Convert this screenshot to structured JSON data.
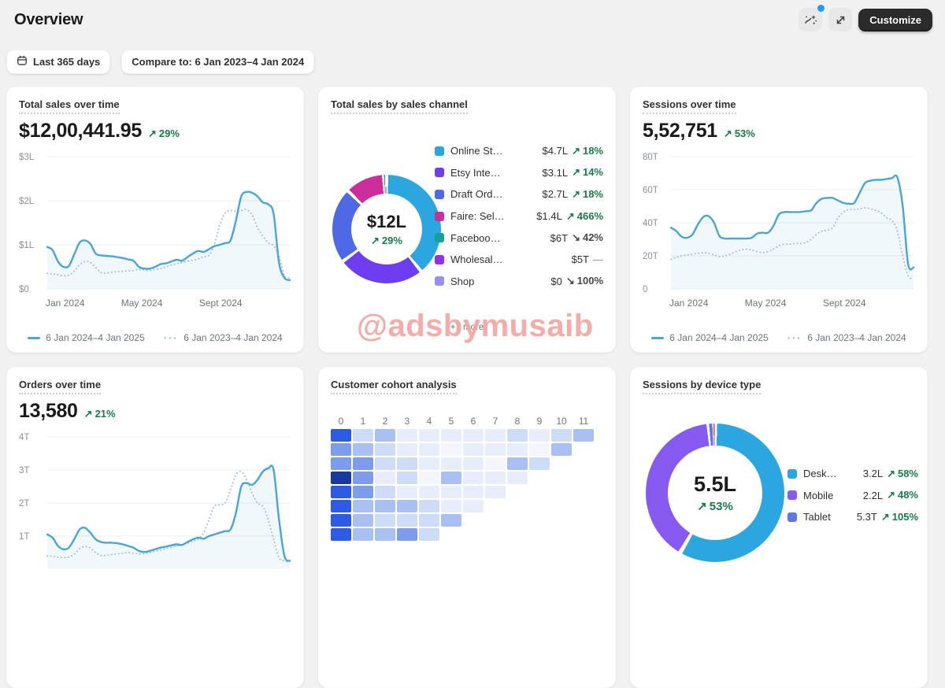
{
  "header": {
    "title": "Overview",
    "customize_label": "Customize"
  },
  "filters": {
    "date_range": "Last 365 days",
    "compare_label": "Compare to: 6 Jan 2023–4 Jan 2024"
  },
  "watermark": "@adsbymusaib",
  "period_legend": {
    "current": "6 Jan 2024–4 Jan 2025",
    "previous": "6 Jan 2023–4 Jan 2024"
  },
  "colors": {
    "line_current": "#4aa4d9",
    "line_previous": "#a3bed8",
    "success_green": "#197a4b",
    "accent_blue": "#2ba6de"
  },
  "chart_data": [
    {
      "id": "total_sales_over_time",
      "type": "line",
      "title": "Total sales over time",
      "value": "$12,00,441.95",
      "delta": {
        "dir": "up",
        "pct": "29%"
      },
      "ylim": [
        0,
        3
      ],
      "y_ticks": [
        {
          "label": "$3L",
          "v": 3
        },
        {
          "label": "$2L",
          "v": 2
        },
        {
          "label": "$1L",
          "v": 1
        },
        {
          "label": "$0",
          "v": 0
        }
      ],
      "x_ticks": [
        {
          "label": "Jan 2024",
          "f": 0
        },
        {
          "label": "May 2024",
          "f": 0.39
        },
        {
          "label": "Sept 2024",
          "f": 0.715
        }
      ],
      "series": [
        {
          "name": "6 Jan 2024–4 Jan 2025",
          "style": "solid",
          "values": [
            0.95,
            0.88,
            0.62,
            0.5,
            0.52,
            0.78,
            1.05,
            1.1,
            1.02,
            0.8,
            0.76,
            0.75,
            0.74,
            0.72,
            0.7,
            0.67,
            0.64,
            0.5,
            0.46,
            0.46,
            0.5,
            0.56,
            0.58,
            0.62,
            0.66,
            0.64,
            0.72,
            0.8,
            0.86,
            0.84,
            0.9,
            0.97,
            1.0,
            1.04,
            1.1,
            1.55,
            2.1,
            2.2,
            2.18,
            2.1,
            1.96,
            1.92,
            1.7,
            0.6,
            0.25,
            0.2
          ]
        },
        {
          "name": "6 Jan 2023–4 Jan 2024",
          "style": "dotted",
          "values": [
            0.35,
            0.34,
            0.32,
            0.3,
            0.31,
            0.4,
            0.55,
            0.62,
            0.6,
            0.48,
            0.37,
            0.36,
            0.38,
            0.39,
            0.4,
            0.41,
            0.42,
            0.44,
            0.43,
            0.42,
            0.44,
            0.46,
            0.5,
            0.54,
            0.57,
            0.6,
            0.63,
            0.65,
            0.68,
            0.73,
            0.76,
            1.0,
            1.45,
            1.72,
            1.78,
            1.76,
            1.78,
            1.8,
            1.68,
            1.4,
            1.2,
            1.05,
            0.98,
            0.75,
            0.3,
            0.25
          ]
        }
      ]
    },
    {
      "id": "total_sales_by_sales_channel",
      "type": "donut",
      "title": "Total sales by sales channel",
      "center_value": "$12L",
      "center_delta": {
        "dir": "up",
        "pct": "29%"
      },
      "more_label": "+1 more",
      "items": [
        {
          "label": "Online St…",
          "color": "#2ba6de",
          "value": "$4.7L",
          "delta": {
            "dir": "up",
            "pct": "18%"
          },
          "share": 39.1
        },
        {
          "label": "Etsy Inte…",
          "color": "#6c3ef0",
          "value": "$3.1L",
          "delta": {
            "dir": "up",
            "pct": "14%"
          },
          "share": 25.8
        },
        {
          "label": "Draft Ord…",
          "color": "#4f68e6",
          "value": "$2.7L",
          "delta": {
            "dir": "up",
            "pct": "18%"
          },
          "share": 22.5
        },
        {
          "label": "Faire: Sel…",
          "color": "#cb2e9a",
          "value": "$1.4L",
          "delta": {
            "dir": "up",
            "pct": "466%"
          },
          "share": 11.7
        },
        {
          "label": "Faceboo…",
          "color": "#17a095",
          "value": "$6T",
          "delta": {
            "dir": "down",
            "pct": "42%"
          },
          "share": 0.5
        },
        {
          "label": "Wholesal…",
          "color": "#9330e8",
          "value": "$5T",
          "delta": {
            "dir": "flat",
            "pct": ""
          },
          "share": 0.3
        },
        {
          "label": "Shop",
          "color": "#988ff2",
          "value": "$0",
          "delta": {
            "dir": "down",
            "pct": "100%"
          },
          "share": 0.1
        }
      ]
    },
    {
      "id": "sessions_over_time",
      "type": "line",
      "title": "Sessions over time",
      "value": "5,52,751",
      "delta": {
        "dir": "up",
        "pct": "53%"
      },
      "ylim": [
        0,
        80
      ],
      "y_ticks": [
        {
          "label": "80T",
          "v": 80
        },
        {
          "label": "60T",
          "v": 60
        },
        {
          "label": "40T",
          "v": 40
        },
        {
          "label": "20T",
          "v": 20
        },
        {
          "label": "0",
          "v": 0
        }
      ],
      "x_ticks": [
        {
          "label": "Jan 2024",
          "f": 0
        },
        {
          "label": "May 2024",
          "f": 0.39
        },
        {
          "label": "Sept 2024",
          "f": 0.715
        }
      ],
      "series": [
        {
          "name": "6 Jan 2024–4 Jan 2025",
          "style": "solid",
          "values": [
            37,
            35,
            31.5,
            31,
            33,
            39,
            43.5,
            44,
            40,
            32,
            30.5,
            30.5,
            30.5,
            30.5,
            30.5,
            31,
            33.5,
            34,
            34,
            38,
            45,
            46.5,
            46.5,
            46.5,
            46.5,
            47,
            47.5,
            52,
            54.5,
            55,
            55,
            53.5,
            52,
            51.5,
            52,
            58,
            64,
            65.5,
            66,
            66,
            66.5,
            67,
            67.5,
            50,
            15,
            13
          ]
        },
        {
          "name": "6 Jan 2023–4 Jan 2024",
          "style": "dotted",
          "values": [
            18,
            19,
            20,
            20.5,
            21,
            21.5,
            22,
            21.5,
            20.5,
            19.5,
            20,
            21,
            22.5,
            23.5,
            24,
            23.5,
            22.5,
            22,
            22.5,
            24,
            26,
            27,
            27,
            27.5,
            27.5,
            28,
            30,
            33,
            35,
            35.5,
            37,
            43,
            46.5,
            48,
            48,
            48.5,
            49,
            48.5,
            47.5,
            46,
            43,
            41.5,
            35,
            20,
            8,
            6
          ]
        }
      ]
    },
    {
      "id": "orders_over_time",
      "type": "line",
      "title": "Orders over time",
      "value": "13,580",
      "delta": {
        "dir": "up",
        "pct": "21%"
      },
      "ylim": [
        0,
        4
      ],
      "y_ticks": [
        {
          "label": "4T",
          "v": 4
        },
        {
          "label": "3T",
          "v": 3
        },
        {
          "label": "2T",
          "v": 2
        },
        {
          "label": "1T",
          "v": 1
        }
      ],
      "x_ticks": [],
      "series": [
        {
          "name": "6 Jan 2024–4 Jan 2025",
          "style": "solid",
          "values": [
            1.05,
            0.95,
            0.7,
            0.6,
            0.65,
            0.9,
            1.2,
            1.25,
            1.1,
            0.9,
            0.82,
            0.8,
            0.8,
            0.78,
            0.75,
            0.7,
            0.65,
            0.55,
            0.52,
            0.55,
            0.6,
            0.65,
            0.68,
            0.72,
            0.75,
            0.73,
            0.82,
            0.9,
            0.95,
            0.92,
            1.0,
            1.05,
            1.1,
            1.15,
            1.2,
            1.7,
            2.5,
            2.6,
            2.55,
            2.7,
            2.95,
            3.05,
            3.0,
            1.5,
            0.4,
            0.25
          ]
        },
        {
          "name": "6 Jan 2023–4 Jan 2024",
          "style": "dotted",
          "values": [
            0.4,
            0.39,
            0.36,
            0.35,
            0.37,
            0.45,
            0.62,
            0.68,
            0.64,
            0.5,
            0.41,
            0.42,
            0.44,
            0.46,
            0.48,
            0.5,
            0.48,
            0.46,
            0.47,
            0.5,
            0.54,
            0.58,
            0.62,
            0.66,
            0.7,
            0.73,
            0.78,
            0.85,
            0.9,
            1.1,
            1.5,
            1.9,
            1.95,
            2.0,
            2.4,
            2.85,
            2.95,
            2.7,
            2.3,
            2.0,
            1.9,
            1.5,
            0.9,
            0.35,
            0.25,
            0.2
          ]
        }
      ]
    },
    {
      "id": "customer_cohort_analysis",
      "type": "heatmap",
      "title": "Customer cohort analysis",
      "cols": [
        "0",
        "1",
        "2",
        "3",
        "4",
        "5",
        "6",
        "7",
        "8",
        "9",
        "10",
        "11"
      ],
      "palette": [
        "#f3f6fd",
        "#e7edfb",
        "#cfdcf8",
        "#a9c0f3",
        "#7e9cee",
        "#2d5be6",
        "#173a9f"
      ],
      "matrix": [
        [
          5,
          2,
          3,
          1,
          1,
          1,
          1,
          1,
          2,
          1,
          2,
          3
        ],
        [
          4,
          3,
          2,
          1,
          1,
          0,
          1,
          1,
          1,
          0,
          3,
          -1
        ],
        [
          4,
          4,
          2,
          2,
          1,
          1,
          1,
          0,
          3,
          2,
          -1,
          -1
        ],
        [
          6,
          4,
          1,
          2,
          0,
          3,
          1,
          1,
          1,
          -1,
          -1,
          -1
        ],
        [
          5,
          4,
          2,
          1,
          1,
          1,
          1,
          1,
          -1,
          -1,
          -1,
          -1
        ],
        [
          5,
          3,
          3,
          3,
          2,
          1,
          1,
          -1,
          -1,
          -1,
          -1,
          -1
        ],
        [
          5,
          3,
          2,
          2,
          2,
          3,
          -1,
          -1,
          -1,
          -1,
          -1,
          -1
        ],
        [
          5,
          3,
          3,
          4,
          2,
          -1,
          -1,
          -1,
          -1,
          -1,
          -1,
          -1
        ]
      ]
    },
    {
      "id": "sessions_by_device_type",
      "type": "donut",
      "title": "Sessions by device type",
      "center_value": "5.5L",
      "center_delta": {
        "dir": "up",
        "pct": "53%"
      },
      "items": [
        {
          "label": "Desk…",
          "color": "#2ba6de",
          "value": "3.2L",
          "delta": {
            "dir": "up",
            "pct": "58%"
          },
          "share": 58.2
        },
        {
          "label": "Mobile",
          "color": "#8659f0",
          "value": "2.2L",
          "delta": {
            "dir": "up",
            "pct": "48%"
          },
          "share": 40.0
        },
        {
          "label": "Tablet",
          "color": "#5a78ea",
          "value": "5.3T",
          "delta": {
            "dir": "up",
            "pct": "105%"
          },
          "share": 1.0
        }
      ],
      "extra_slices": [
        {
          "color": "#c9427e",
          "share": 0.5
        }
      ]
    }
  ]
}
